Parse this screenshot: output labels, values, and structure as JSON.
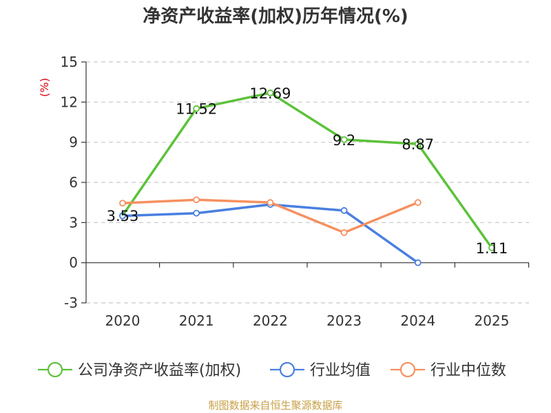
{
  "chart_data": {
    "type": "line",
    "title": "净资产收益率(加权)历年情况(%)",
    "unit_label": "(%)",
    "categories": [
      "2020",
      "2021",
      "2022",
      "2023",
      "2024",
      "2025"
    ],
    "ylim": [
      -3,
      15
    ],
    "yticks": [
      "15",
      "12",
      "9",
      "6",
      "3",
      "0",
      "-3"
    ],
    "grid": true,
    "legend_position": "bottom",
    "series": [
      {
        "name": "公司净资产收益率(加权)",
        "color": "#5cc23a",
        "values": [
          3.53,
          11.52,
          12.69,
          9.2,
          8.87,
          1.11
        ],
        "labels": [
          "3.53",
          "11.52",
          "12.69",
          "9.2",
          "8.87",
          "1.11"
        ]
      },
      {
        "name": "行业均值",
        "color": "#4a7fe0",
        "values": [
          3.5,
          3.7,
          4.35,
          3.9,
          0.0,
          null
        ]
      },
      {
        "name": "行业中位数",
        "color": "#f59160",
        "values": [
          4.45,
          4.7,
          4.5,
          2.25,
          4.5,
          null
        ]
      }
    ],
    "source": "制图数据来自恒生聚源数据库"
  }
}
